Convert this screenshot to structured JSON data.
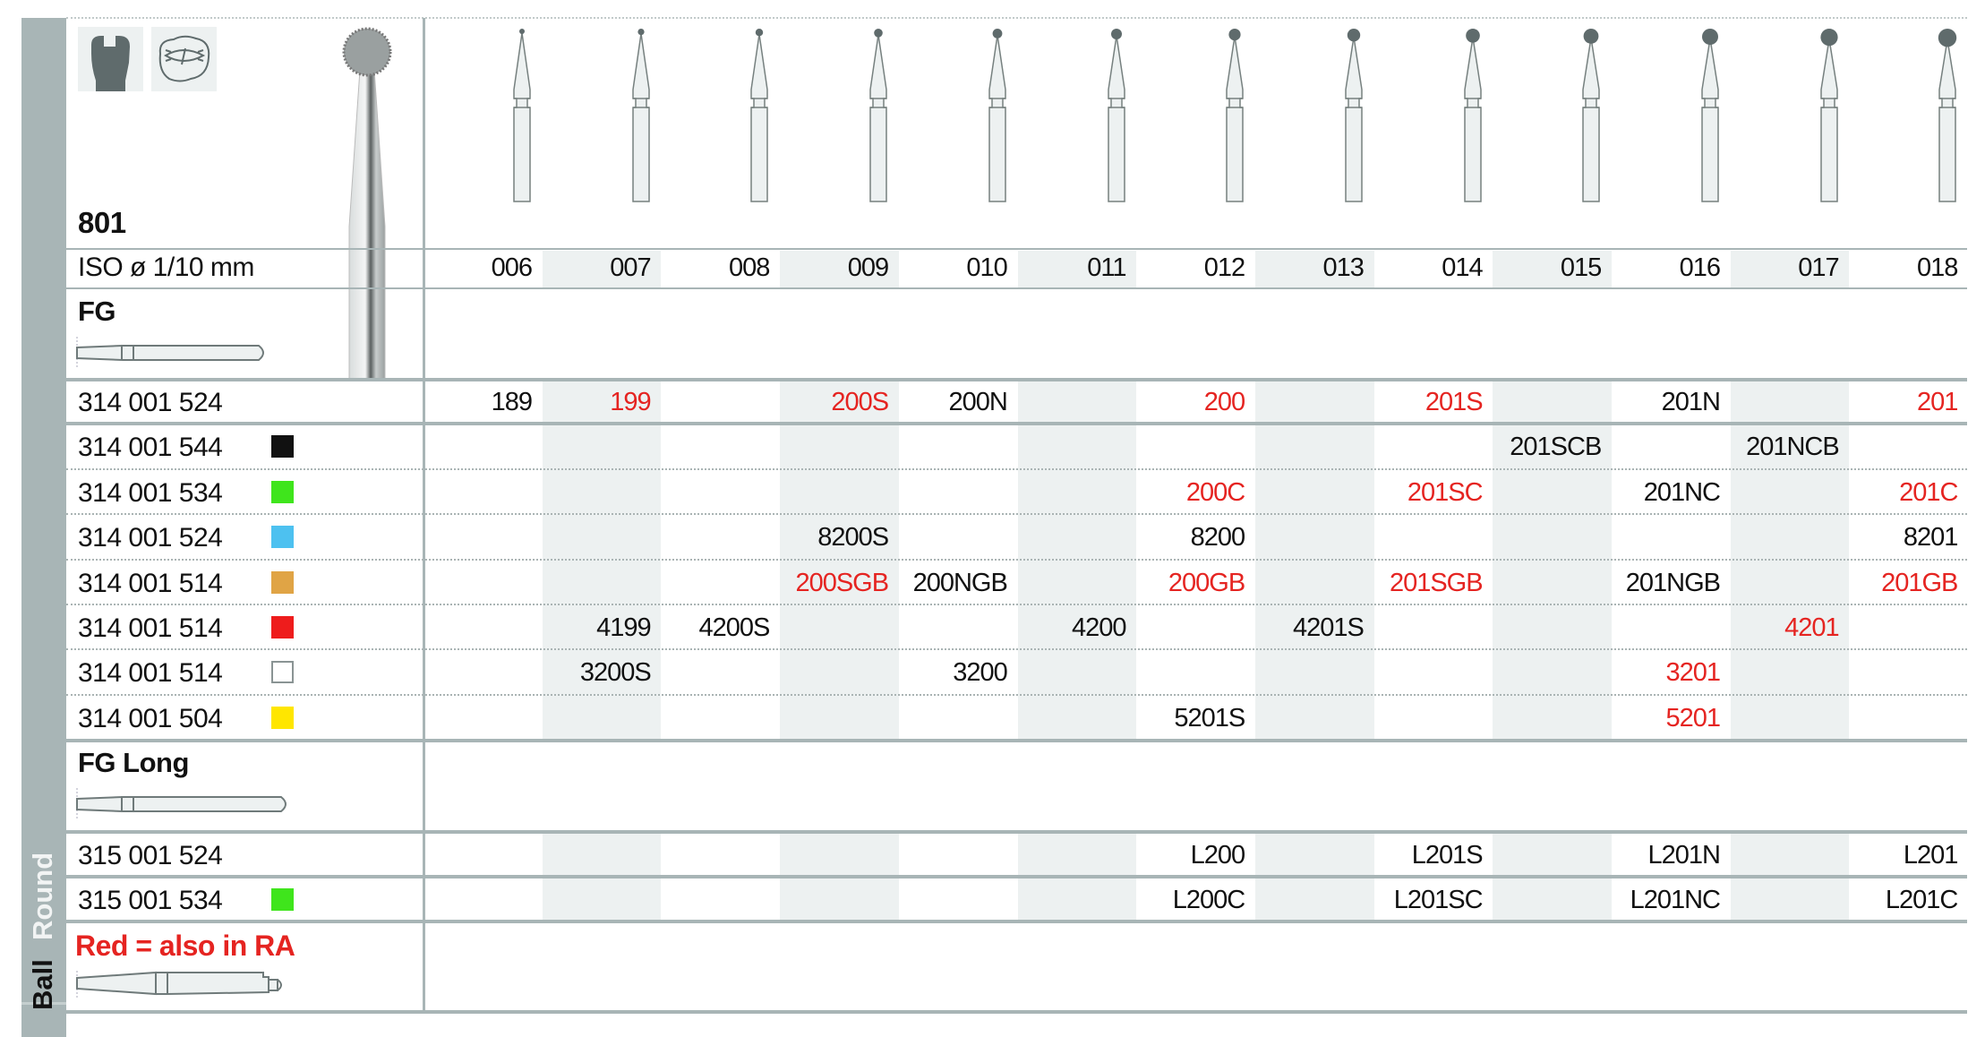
{
  "product": {
    "number": "801",
    "iso_label": "ISO ø 1/10 mm",
    "sidebar_shape": "Ball",
    "sidebar_shape_alt": "Round"
  },
  "icons": [
    "crown-preparation-icon",
    "occlusal-cavity-icon",
    "round-bur-image"
  ],
  "columns": [
    "006",
    "007",
    "008",
    "009",
    "010",
    "011",
    "012",
    "013",
    "014",
    "015",
    "016",
    "017",
    "018"
  ],
  "colors": {
    "red_text": "#e52421",
    "sidebar": "#a8b5b6",
    "shade": "#edf1f1"
  },
  "sections": [
    {
      "title": "FG",
      "shank_icon": "fg-shank-icon",
      "rows": [
        {
          "code": "314 001 524",
          "swatch": null,
          "cells": {
            "006": "189",
            "007": "199",
            "009": "200S",
            "010": "200N",
            "012": "200",
            "014": "201S",
            "016": "201N",
            "018": "201"
          },
          "red": [
            "007",
            "009",
            "012",
            "014",
            "018"
          ]
        },
        {
          "code": "314 001 544",
          "swatch": "#111111",
          "cells": {
            "015": "201SCB",
            "017": "201NCB"
          },
          "red": []
        },
        {
          "code": "314 001 534",
          "swatch": "#3fe51c",
          "cells": {
            "012": "200C",
            "014": "201SC",
            "016": "201NC",
            "018": "201C"
          },
          "red": [
            "012",
            "014",
            "018"
          ]
        },
        {
          "code": "314 001 524",
          "swatch": "#4dc1f0",
          "cells": {
            "009": "8200S",
            "012": "8200",
            "018": "8201"
          },
          "red": []
        },
        {
          "code": "314 001 514",
          "swatch": "#e0a445",
          "cells": {
            "009": "200SGB",
            "010": "200NGB",
            "012": "200GB",
            "014": "201SGB",
            "016": "201NGB",
            "018": "201GB"
          },
          "red": [
            "009",
            "012",
            "014",
            "018"
          ]
        },
        {
          "code": "314 001 514",
          "swatch": "#ee1c1c",
          "cells": {
            "007": "4199",
            "008": "4200S",
            "011": "4200",
            "013": "4201S",
            "017": "4201"
          },
          "red": [
            "017"
          ]
        },
        {
          "code": "314 001 514",
          "swatch": "#ffffff",
          "cells": {
            "007": "3200S",
            "010": "3200",
            "016": "3201"
          },
          "red": [
            "016"
          ]
        },
        {
          "code": "314 001 504",
          "swatch": "#ffe600",
          "cells": {
            "012": "5201S",
            "016": "5201"
          },
          "red": [
            "016"
          ]
        }
      ]
    },
    {
      "title": "FG Long",
      "shank_icon": "fg-long-shank-icon",
      "rows": [
        {
          "code": "315 001 524",
          "swatch": null,
          "cells": {
            "012": "L200",
            "014": "L201S",
            "016": "L201N",
            "018": "L201"
          },
          "red": []
        },
        {
          "code": "315 001 534",
          "swatch": "#3fe51c",
          "cells": {
            "012": "L200C",
            "014": "L201SC",
            "016": "L201NC",
            "018": "L201C"
          },
          "red": []
        }
      ]
    }
  ],
  "legend": {
    "note": "Red = also in RA",
    "shank_icon": "ra-shank-icon"
  }
}
